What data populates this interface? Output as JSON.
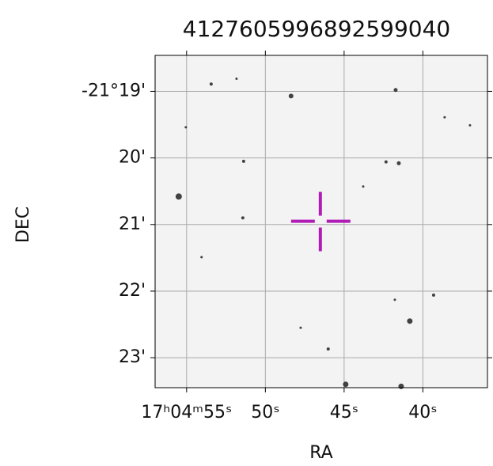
{
  "chart_data": {
    "type": "sky",
    "title": "4127605996892599040",
    "xlabel": "RA",
    "ylabel": "DEC",
    "xlim": [
      57.0,
      35.9
    ],
    "ylim": [
      -1278.46,
      -1283.45
    ],
    "xticks": [
      {
        "value": 55,
        "label": "17ʰ04ᵐ55ˢ"
      },
      {
        "value": 50,
        "label": "50ˢ"
      },
      {
        "value": 45,
        "label": "45ˢ"
      },
      {
        "value": 40,
        "label": "40ˢ"
      }
    ],
    "yticks": [
      {
        "value": -1279,
        "label": "-21°19'"
      },
      {
        "value": -1280,
        "label": "20'"
      },
      {
        "value": -1281,
        "label": "21'"
      },
      {
        "value": -1282,
        "label": "22'"
      },
      {
        "value": -1283,
        "label": "23'"
      }
    ],
    "grid": true,
    "target": {
      "x": 46.51,
      "y": -1280.95,
      "color": "#b01cb5"
    },
    "stars": {
      "x": [
        53.44,
        51.83,
        48.37,
        41.73,
        51.38,
        55.5,
        51.43,
        42.34,
        41.53,
        43.79,
        38.62,
        39.32,
        40.83,
        46.01,
        44.9,
        41.38,
        47.76,
        41.78,
        54.05,
        37.01,
        55.05
      ],
      "y": [
        -1278.89,
        -1278.81,
        -1279.07,
        -1278.98,
        -1280.05,
        -1280.58,
        -1280.9,
        -1280.06,
        -1280.08,
        -1280.43,
        -1279.39,
        -1282.06,
        -1282.45,
        -1282.87,
        -1283.4,
        -1283.43,
        -1282.55,
        -1282.13,
        -1281.49,
        -1279.51,
        -1279.54
      ],
      "size": [
        2,
        1.5,
        3,
        2.5,
        2,
        4,
        2,
        2,
        2.5,
        1.5,
        1.5,
        2,
        3.5,
        2,
        3.5,
        3.5,
        1.5,
        1.5,
        1.5,
        1.5,
        1.5
      ]
    }
  }
}
